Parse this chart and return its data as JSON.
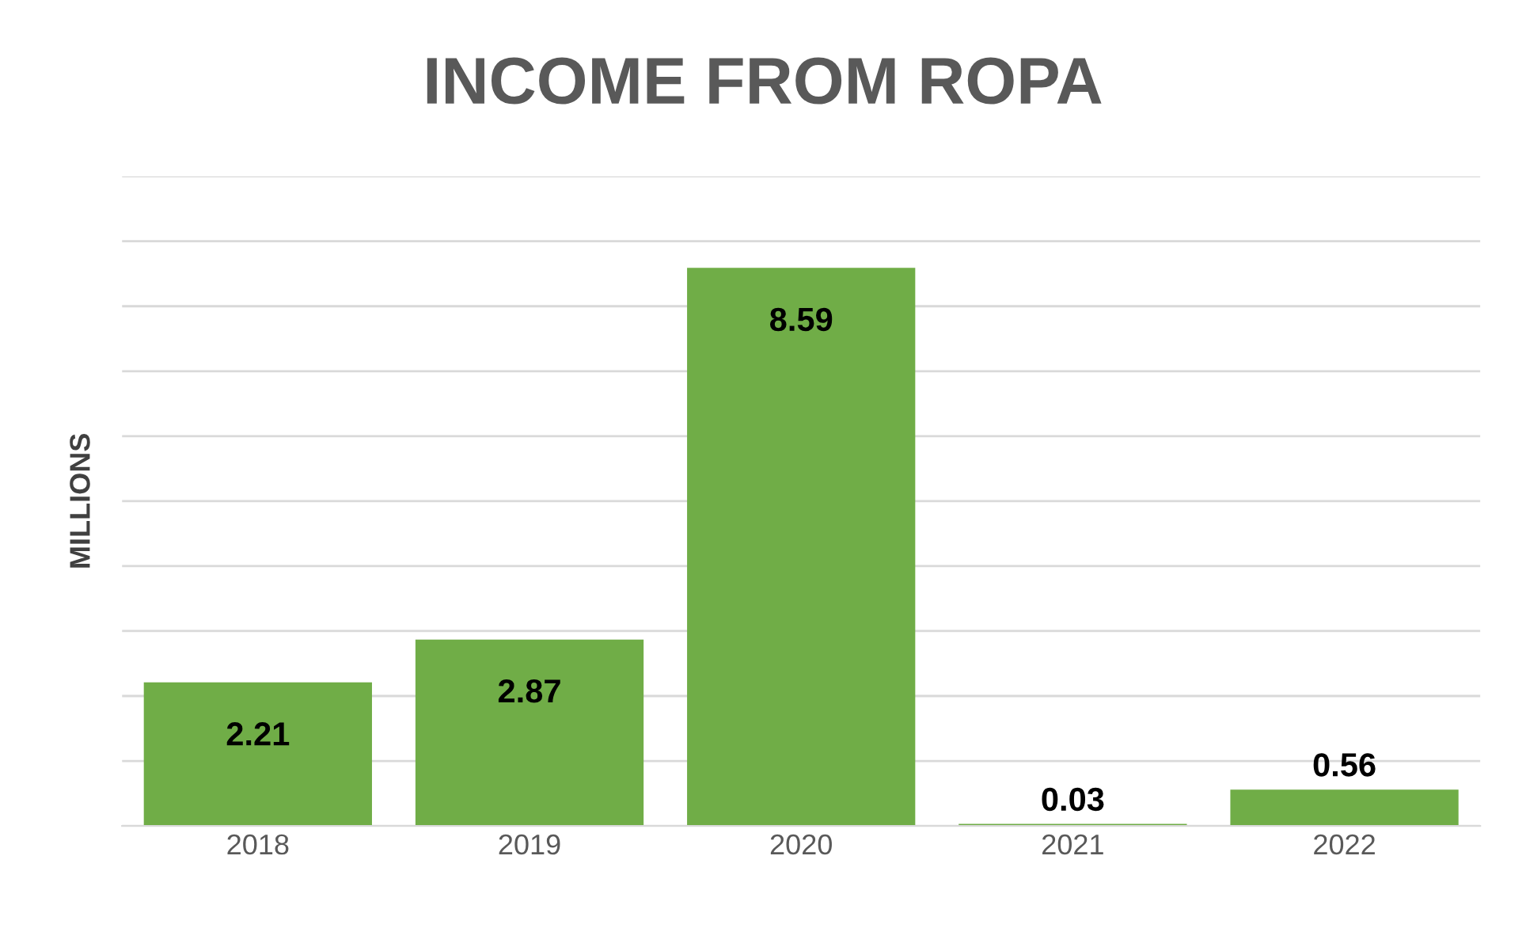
{
  "chart_data": {
    "type": "bar",
    "title": "INCOME FROM ROPA",
    "ylabel": "MILLIONS",
    "categories": [
      "2018",
      "2019",
      "2020",
      "2021",
      "2022"
    ],
    "values": [
      2.21,
      2.87,
      8.59,
      0.03,
      0.56
    ],
    "color": "#70ad47",
    "ylim": [
      0,
      10
    ],
    "yticks": [
      {
        "value": 0,
        "label": null
      },
      {
        "value": 1,
        "label": null
      },
      {
        "value": 2,
        "label": null
      },
      {
        "value": 3,
        "label": null
      },
      {
        "value": 4,
        "label": null
      },
      {
        "value": 5,
        "label": null
      },
      {
        "value": 6,
        "label": null
      },
      {
        "value": 7,
        "label": null
      },
      {
        "value": 8,
        "label": null
      },
      {
        "value": 9,
        "label": null
      },
      {
        "value": 10,
        "label": null
      }
    ],
    "grid": "y",
    "data_labels": true,
    "tick_labels": "x"
  }
}
